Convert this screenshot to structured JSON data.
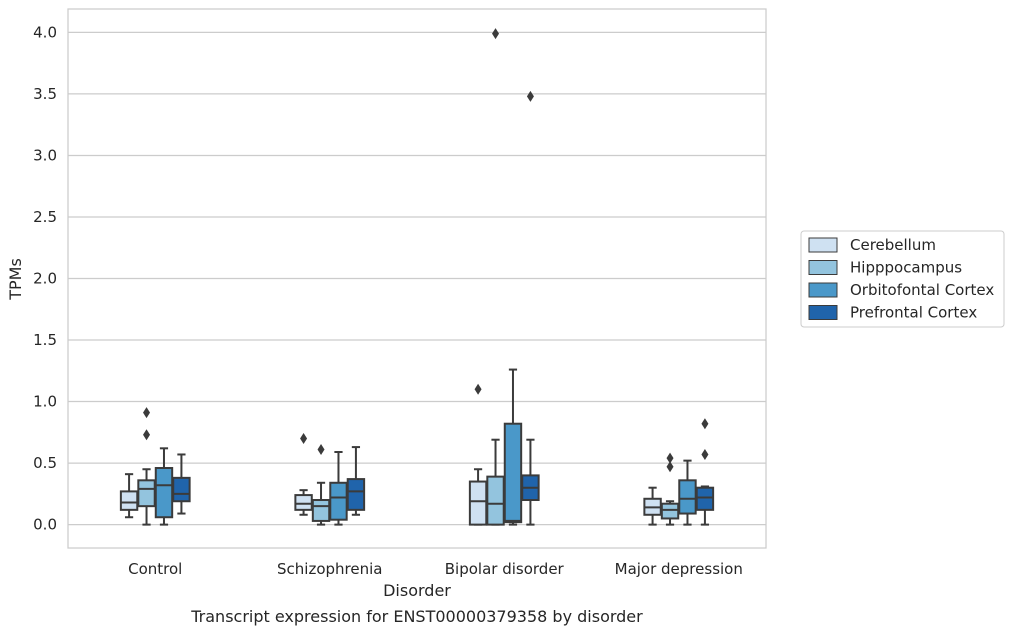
{
  "chart_data": {
    "type": "box",
    "caption": "Transcript expression for ENST00000379358 by disorder",
    "xlabel": "Disorder",
    "ylabel": "TPMs",
    "ylim": [
      -0.19,
      4.19
    ],
    "yticks": [
      0.0,
      0.5,
      1.0,
      1.5,
      2.0,
      2.5,
      3.0,
      3.5,
      4.0
    ],
    "ytick_labels": [
      "0.0",
      "0.5",
      "1.0",
      "1.5",
      "2.0",
      "2.5",
      "3.0",
      "3.5",
      "4.0"
    ],
    "grid": "horizontal",
    "legend_position": "right",
    "categories": [
      "Control",
      "Schizophrenia",
      "Bipolar disorder",
      "Major depression"
    ],
    "series": [
      {
        "name": "Cerebellum",
        "color": "#cfe1f2",
        "boxes": [
          {
            "whislo": 0.06,
            "q1": 0.12,
            "med": 0.18,
            "q3": 0.27,
            "whishi": 0.41,
            "fliers": []
          },
          {
            "whislo": 0.08,
            "q1": 0.12,
            "med": 0.17,
            "q3": 0.24,
            "whishi": 0.28,
            "fliers": [
              0.7
            ]
          },
          {
            "whislo": 0.0,
            "q1": 0.0,
            "med": 0.19,
            "q3": 0.35,
            "whishi": 0.45,
            "fliers": [
              1.1
            ]
          },
          {
            "whislo": 0.0,
            "q1": 0.08,
            "med": 0.14,
            "q3": 0.21,
            "whishi": 0.3,
            "fliers": []
          }
        ]
      },
      {
        "name": "Hipppocampus",
        "color": "#93c4de",
        "boxes": [
          {
            "whislo": 0.0,
            "q1": 0.15,
            "med": 0.29,
            "q3": 0.36,
            "whishi": 0.45,
            "fliers": [
              0.73,
              0.91
            ]
          },
          {
            "whislo": 0.0,
            "q1": 0.03,
            "med": 0.15,
            "q3": 0.2,
            "whishi": 0.34,
            "fliers": [
              0.61
            ]
          },
          {
            "whislo": 0.0,
            "q1": 0.0,
            "med": 0.17,
            "q3": 0.39,
            "whishi": 0.69,
            "fliers": [
              3.99
            ]
          },
          {
            "whislo": 0.0,
            "q1": 0.05,
            "med": 0.12,
            "q3": 0.17,
            "whishi": 0.19,
            "fliers": [
              0.47,
              0.54
            ]
          }
        ]
      },
      {
        "name": "Orbitofontal Cortex",
        "color": "#4a98c9",
        "boxes": [
          {
            "whislo": 0.0,
            "q1": 0.06,
            "med": 0.32,
            "q3": 0.46,
            "whishi": 0.62,
            "fliers": []
          },
          {
            "whislo": 0.0,
            "q1": 0.04,
            "med": 0.22,
            "q3": 0.34,
            "whishi": 0.59,
            "fliers": []
          },
          {
            "whislo": 0.0,
            "q1": 0.02,
            "med": 0.03,
            "q3": 0.82,
            "whishi": 1.26,
            "fliers": []
          },
          {
            "whislo": 0.0,
            "q1": 0.09,
            "med": 0.21,
            "q3": 0.36,
            "whishi": 0.52,
            "fliers": []
          }
        ]
      },
      {
        "name": "Prefrontal Cortex",
        "color": "#2064ab",
        "boxes": [
          {
            "whislo": 0.09,
            "q1": 0.19,
            "med": 0.25,
            "q3": 0.38,
            "whishi": 0.57,
            "fliers": []
          },
          {
            "whislo": 0.08,
            "q1": 0.12,
            "med": 0.27,
            "q3": 0.37,
            "whishi": 0.63,
            "fliers": []
          },
          {
            "whislo": 0.0,
            "q1": 0.2,
            "med": 0.3,
            "q3": 0.4,
            "whishi": 0.69,
            "fliers": [
              3.48
            ]
          },
          {
            "whislo": 0.0,
            "q1": 0.12,
            "med": 0.22,
            "q3": 0.3,
            "whishi": 0.31,
            "fliers": [
              0.57,
              0.82
            ]
          }
        ]
      }
    ]
  }
}
